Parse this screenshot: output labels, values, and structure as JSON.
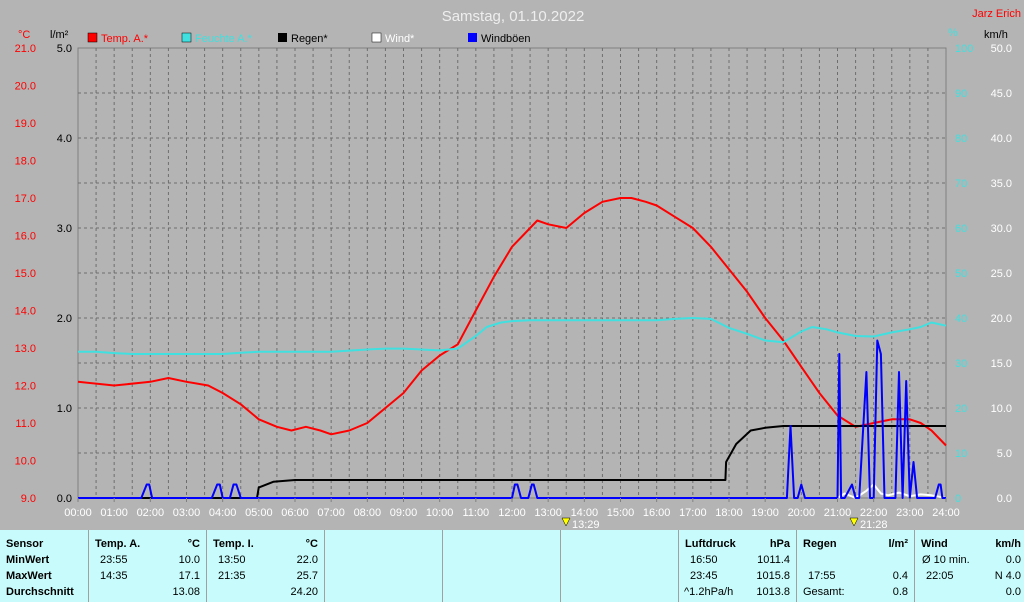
{
  "header": {
    "title": "Samstag, 01.10.2022",
    "station": "Jarz Erich"
  },
  "axis_units": {
    "temp": "°C",
    "rain": "l/m²",
    "humidity": "%",
    "wind": "km/h"
  },
  "legend": [
    {
      "label": "Temp. A.*",
      "color": "#ff0000"
    },
    {
      "label": "Feuchte A.*",
      "color": "#40e0e0"
    },
    {
      "label": "Regen*",
      "color": "#000000"
    },
    {
      "label": "Wind*",
      "color": "#ffffff"
    },
    {
      "label": "Windböen",
      "color": "#0000ff"
    }
  ],
  "markers": {
    "min_time": "13:29",
    "max_time": "21:28"
  },
  "chart_data": {
    "type": "line",
    "title": "Samstag, 01.10.2022",
    "x_unit": "hours",
    "xlim": [
      0,
      24
    ],
    "x_tick_labels": [
      "00:00",
      "01:00",
      "02:00",
      "03:00",
      "04:00",
      "05:00",
      "06:00",
      "07:00",
      "08:00",
      "09:00",
      "10:00",
      "11:00",
      "12:00",
      "13:00",
      "14:00",
      "15:00",
      "16:00",
      "17:00",
      "18:00",
      "19:00",
      "20:00",
      "21:00",
      "22:00",
      "23:00",
      "24:00"
    ],
    "axes": {
      "temp": {
        "label": "°C",
        "ylim": [
          9.0,
          21.0
        ],
        "ticks": [
          "9.0",
          "10.0",
          "11.0",
          "12.0",
          "13.0",
          "14.0",
          "15.0",
          "16.0",
          "17.0",
          "18.0",
          "19.0",
          "20.0",
          "21.0"
        ]
      },
      "rain": {
        "label": "l/m²",
        "ylim": [
          0.0,
          5.0
        ],
        "ticks": [
          "0.0",
          "1.0",
          "2.0",
          "3.0",
          "4.0",
          "5.0"
        ]
      },
      "humidity": {
        "label": "%",
        "ylim": [
          0,
          100
        ],
        "ticks": [
          "0",
          "10",
          "20",
          "30",
          "40",
          "50",
          "60",
          "70",
          "80",
          "90",
          "100"
        ]
      },
      "wind": {
        "label": "km/h",
        "ylim": [
          0.0,
          50.0
        ],
        "ticks": [
          "0.0",
          "5.0",
          "10.0",
          "15.0",
          "20.0",
          "25.0",
          "30.0",
          "35.0",
          "40.0",
          "45.0",
          "50.0"
        ]
      }
    },
    "grid": true,
    "legend_position": "top",
    "series": [
      {
        "name": "Temp. A.*",
        "axis": "temp",
        "color": "#ff0000",
        "x": [
          0,
          1,
          2,
          2.5,
          3,
          3.6,
          4,
          4.5,
          5,
          5.5,
          5.9,
          6.3,
          6.7,
          7,
          7.5,
          8,
          8.5,
          9,
          9.5,
          10,
          10.5,
          11,
          11.5,
          12,
          12.3,
          12.7,
          13,
          13.5,
          14,
          14.5,
          15,
          15.3,
          15.7,
          16,
          16.5,
          17,
          17.5,
          18,
          18.5,
          19,
          19.5,
          20,
          20.5,
          21,
          21.5,
          22,
          22.5,
          23,
          23.3,
          23.6,
          24
        ],
        "y": [
          12.1,
          12.0,
          12.1,
          12.2,
          12.1,
          12.0,
          11.8,
          11.5,
          11.1,
          10.9,
          10.8,
          10.9,
          10.8,
          10.7,
          10.8,
          11.0,
          11.4,
          11.8,
          12.4,
          12.8,
          13.1,
          14.0,
          14.9,
          15.7,
          16.0,
          16.4,
          16.3,
          16.2,
          16.6,
          16.9,
          17.0,
          17.0,
          16.9,
          16.8,
          16.5,
          16.2,
          15.7,
          15.1,
          14.5,
          13.8,
          13.2,
          12.5,
          11.8,
          11.2,
          10.9,
          11.0,
          11.1,
          11.1,
          11.0,
          10.8,
          10.4
        ]
      },
      {
        "name": "Feuchte A.*",
        "axis": "humidity",
        "color": "#40e0e0",
        "x": [
          0,
          0.5,
          1,
          1.5,
          2,
          3,
          4,
          4.5,
          5,
          6,
          7,
          8,
          8.5,
          9,
          9.5,
          10,
          10.5,
          11,
          11.3,
          11.7,
          12,
          12.5,
          13,
          14,
          15,
          16,
          16.5,
          17,
          17.5,
          18,
          18.5,
          19,
          19.5,
          20,
          20.3,
          20.7,
          21,
          21.5,
          22,
          22.5,
          23,
          23.3,
          23.6,
          24
        ],
        "y": [
          32.5,
          32.5,
          32.2,
          32.0,
          32.0,
          32.0,
          32.0,
          32.3,
          32.5,
          32.5,
          32.5,
          33.0,
          33.2,
          33.2,
          33.0,
          32.8,
          33.2,
          36.0,
          38.0,
          39.0,
          39.3,
          39.5,
          39.5,
          39.5,
          39.5,
          39.5,
          39.8,
          40.0,
          39.8,
          37.8,
          36.5,
          35.0,
          34.6,
          37.0,
          38.0,
          37.5,
          36.8,
          36.0,
          35.9,
          36.8,
          37.5,
          38.0,
          39.0,
          38.3
        ]
      },
      {
        "name": "Regen*",
        "axis": "rain",
        "color": "#000000",
        "x": [
          0,
          4.95,
          5.0,
          5.02,
          5.4,
          6,
          7,
          8,
          10,
          12,
          14,
          16,
          17.9,
          17.92,
          18.2,
          18.6,
          19,
          19.5,
          20,
          22,
          24
        ],
        "y": [
          0,
          0,
          0.12,
          0.12,
          0.18,
          0.2,
          0.2,
          0.2,
          0.2,
          0.2,
          0.2,
          0.2,
          0.2,
          0.4,
          0.6,
          0.75,
          0.78,
          0.8,
          0.8,
          0.8,
          0.8
        ]
      },
      {
        "name": "Wind*",
        "axis": "wind",
        "color": "#ffffff",
        "x": [
          21.0,
          21.2,
          21.5,
          21.8,
          22.0,
          22.2,
          22.4,
          22.7,
          23.0,
          23.3,
          23.6,
          24
        ],
        "y": [
          0,
          0.5,
          0,
          0.8,
          1.5,
          0.5,
          0.3,
          0.6,
          0.2,
          0.4,
          0.3,
          0
        ]
      },
      {
        "name": "Windböen",
        "axis": "wind",
        "color": "#0000ff",
        "x": [
          0,
          1.75,
          1.9,
          1.97,
          2.05,
          2.2,
          3.7,
          3.85,
          3.92,
          4.0,
          4.2,
          4.3,
          4.38,
          4.5,
          12.0,
          12.08,
          12.15,
          12.25,
          12.45,
          12.55,
          12.6,
          12.7,
          19.6,
          19.7,
          19.8,
          19.9,
          20.0,
          20.1,
          20.2,
          20.3,
          20.4,
          20.6,
          21.0,
          21.05,
          21.1,
          21.2,
          21.4,
          21.5,
          21.55,
          21.6,
          21.8,
          21.9,
          22.0,
          22.1,
          22.2,
          22.3,
          22.4,
          22.6,
          22.7,
          22.8,
          22.9,
          23.0,
          23.1,
          23.2,
          23.3,
          23.7,
          23.8,
          23.85,
          23.9,
          24
        ],
        "y": [
          0,
          0,
          1.5,
          1.5,
          0,
          0,
          0,
          1.5,
          1.5,
          0,
          0,
          1.5,
          1.5,
          0,
          0,
          1.5,
          1.5,
          0,
          0,
          1.5,
          1.5,
          0,
          0,
          8.0,
          0,
          0,
          1.5,
          0,
          0,
          0,
          0,
          0,
          0,
          16.0,
          0,
          0,
          1.5,
          0,
          0,
          0,
          14.0,
          0,
          0,
          17.5,
          16.0,
          0,
          0,
          0,
          14.0,
          0,
          13.0,
          0,
          4.0,
          0,
          0,
          0,
          1.5,
          1.5,
          0,
          0
        ]
      }
    ]
  },
  "stats": {
    "sensor": {
      "header": "Sensor",
      "min": "MinWert",
      "max": "MaxWert",
      "avg": "Durchschnitt"
    },
    "temp_a": {
      "header": "Temp. A.",
      "unit": "°C",
      "min_time": "23:55",
      "min_val": "10.0",
      "max_time": "14:35",
      "max_val": "17.1",
      "avg_val": "13.08"
    },
    "temp_i": {
      "header": "Temp. I.",
      "unit": "°C",
      "min_time": "13:50",
      "min_val": "22.0",
      "max_time": "21:35",
      "max_val": "25.7",
      "avg_val": "24.20"
    },
    "pressure": {
      "header": "Luftdruck",
      "unit": "hPa",
      "min_time": "16:50",
      "min_val": "1011.4",
      "max_time": "23:45",
      "max_val": "1015.8",
      "trend_label": "^1.2hPa/h",
      "trend_val": "1013.8"
    },
    "rain": {
      "header": "Regen",
      "unit": "l/m²",
      "max_time": "17:55",
      "max_val": "0.4",
      "total_label": "Gesamt:",
      "total_val": "0.8"
    },
    "wind": {
      "header": "Wind",
      "unit": "km/h",
      "avg_label": "Ø 10 min.",
      "avg_val": "0.0",
      "max_time": "22:05",
      "max_val": "N 4.0",
      "extra_val": "0.0"
    }
  }
}
